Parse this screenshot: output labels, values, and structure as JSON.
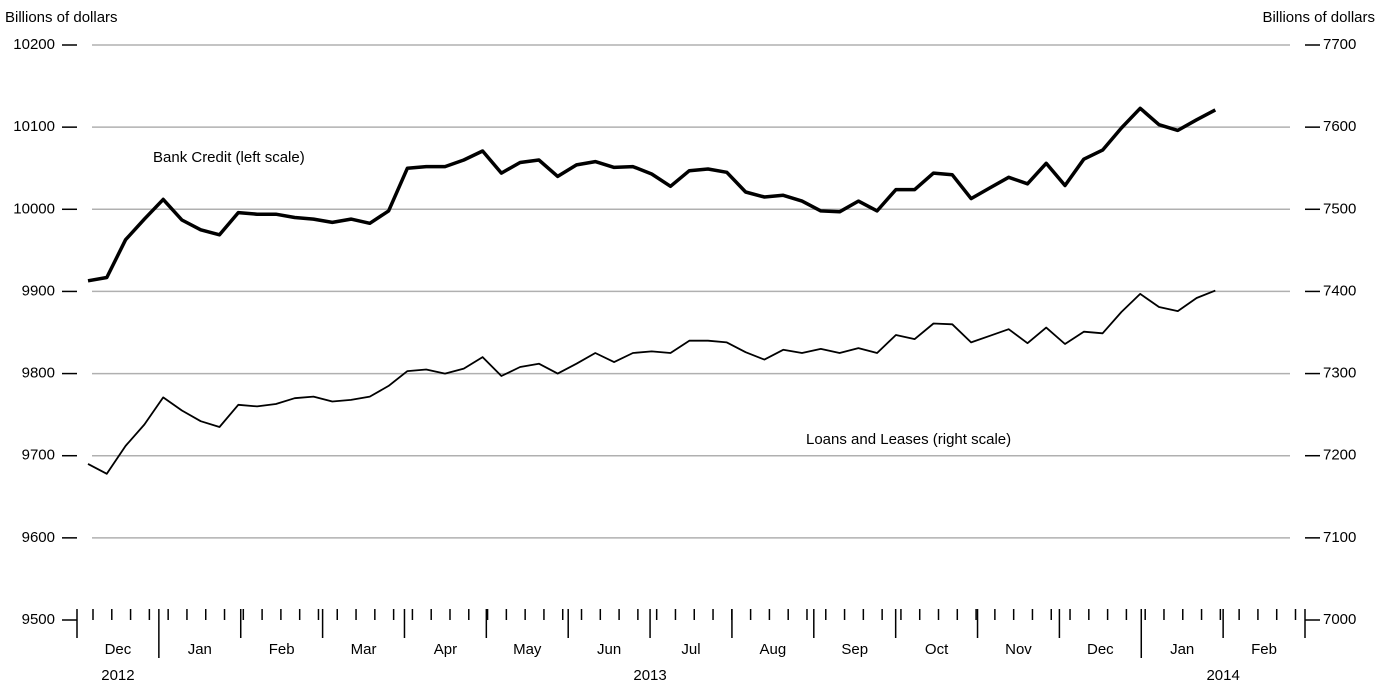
{
  "chart_data": {
    "type": "line",
    "y_label": "Billions of dollars",
    "y2_label": "Billions of dollars",
    "months": [
      "Dec",
      "Jan",
      "Feb",
      "Mar",
      "Apr",
      "May",
      "Jun",
      "Jul",
      "Aug",
      "Sep",
      "Oct",
      "Nov",
      "Dec",
      "Jan",
      "Feb"
    ],
    "years": [
      "2012",
      "2013",
      "2014"
    ],
    "ylim": [
      9500,
      10200
    ],
    "yticks": [
      9500,
      9600,
      9700,
      9800,
      9900,
      10000,
      10100,
      10200
    ],
    "y2lim": [
      7000,
      7700
    ],
    "y2ticks": [
      7000,
      7100,
      7200,
      7300,
      7400,
      7500,
      7600,
      7700
    ],
    "grid": true,
    "series": [
      {
        "name": "Bank Credit (left scale)",
        "color": "#000000",
        "line_width": 3.5,
        "axis": "y",
        "values": [
          9913,
          9917,
          9963,
          9988,
          10012,
          9987,
          9975,
          9969,
          9996,
          9994,
          9994,
          9990,
          9988,
          9984,
          9988,
          9983,
          9998,
          10050,
          10052,
          10052,
          10060,
          10071,
          10044,
          10057,
          10060,
          10040,
          10054,
          10058,
          10051,
          10052,
          10043,
          10028,
          10047,
          10049,
          10045,
          10021,
          10015,
          10017,
          10010,
          9998,
          9997,
          10010,
          9998,
          10024,
          10024,
          10044,
          10042,
          10013,
          10026,
          10039,
          10031,
          10056,
          10029,
          10061,
          10072,
          10099,
          10123,
          10103,
          10096,
          10109,
          10121
        ]
      },
      {
        "name": "Loans and Leases (right scale)",
        "color": "#000000",
        "line_width": 1.8,
        "axis": "y2",
        "values": [
          7190,
          7178,
          7212,
          7238,
          7271,
          7255,
          7242,
          7235,
          7262,
          7260,
          7263,
          7270,
          7272,
          7266,
          7268,
          7272,
          7285,
          7303,
          7305,
          7300,
          7306,
          7320,
          7297,
          7308,
          7312,
          7300,
          7312,
          7325,
          7314,
          7325,
          7327,
          7325,
          7340,
          7340,
          7338,
          7326,
          7317,
          7329,
          7325,
          7330,
          7325,
          7331,
          7325,
          7347,
          7342,
          7361,
          7360,
          7338,
          7346,
          7354,
          7337,
          7356,
          7336,
          7351,
          7349,
          7375,
          7397,
          7381,
          7376,
          7392,
          7401
        ]
      }
    ]
  }
}
